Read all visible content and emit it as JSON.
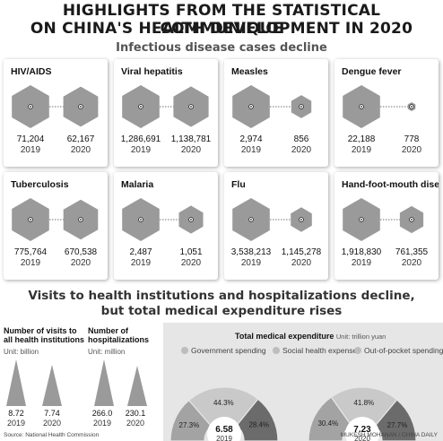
{
  "title_line1": "HIGHLIGHTS FROM THE STATISTICAL COMMUNIQUE",
  "title_line2": "ON CHINA'S HEALTH DEVELOPMENT IN 2020",
  "section1_title": "Infectious disease cases decline",
  "diseases": [
    {
      "name": "HIV/AIDS",
      "v2019": "71,204",
      "v2020": "62,167",
      "y2019": "2019",
      "y2020": "2020",
      "n2019": 71204,
      "n2020": 62167
    },
    {
      "name": "Viral hepatitis",
      "v2019": "1,286,691",
      "v2020": "1,138,781",
      "y2019": "2019",
      "y2020": "2020",
      "n2019": 1286691,
      "n2020": 1138781
    },
    {
      "name": "Measles",
      "v2019": "2,974",
      "v2020": "856",
      "y2019": "2019",
      "y2020": "2020",
      "n2019": 2974,
      "n2020": 856
    },
    {
      "name": "Dengue fever",
      "v2019": "22,188",
      "v2020": "778",
      "y2019": "2019",
      "y2020": "2020",
      "n2019": 22188,
      "n2020": 778
    },
    {
      "name": "Tuberculosis",
      "v2019": "775,764",
      "v2020": "670,538",
      "y2019": "2019",
      "y2020": "2020",
      "n2019": 775764,
      "n2020": 670538
    },
    {
      "name": "Malaria",
      "v2019": "2,487",
      "v2020": "1,051",
      "y2019": "2019",
      "y2020": "2020",
      "n2019": 2487,
      "n2020": 1051
    },
    {
      "name": "Flu",
      "v2019": "3,538,213",
      "v2020": "1,145,278",
      "y2019": "2019",
      "y2020": "2020",
      "n2019": 3538213,
      "n2020": 1145278
    },
    {
      "name": "Hand-foot-mouth disease",
      "v2019": "1,918,830",
      "v2020": "761,355",
      "y2019": "2019",
      "y2020": "2020",
      "n2019": 1918830,
      "n2020": 761355
    }
  ],
  "section2_title_line1": "Visits to health institutions and hospitalizations decline,",
  "section2_title_line2": "but total medical expenditure rises",
  "visits": {
    "title_line1": "Number of visits to",
    "title_line2": "all health institutions",
    "unit": "Unit: billion",
    "values": [
      "8.72",
      "7.74"
    ],
    "numbers": [
      8.72,
      7.74
    ],
    "years": [
      "2019",
      "2020"
    ]
  },
  "hosp": {
    "title_line1": "Number of",
    "title_line2": "hospitalizations",
    "unit": "Unit: million",
    "values": [
      "266.0",
      "230.1"
    ],
    "numbers": [
      266.0,
      230.1
    ],
    "years": [
      "2019",
      "2020"
    ]
  },
  "expenditure": {
    "title": "Total medical expenditure",
    "unit": "Unit: trillion yuan",
    "legend": [
      "Government spending",
      "Social health expenses",
      "Out-of-pocket spending"
    ],
    "colors": [
      "#a3a3a3",
      "#c9c9c9",
      "#6b6b6b"
    ],
    "years": [
      {
        "year": "2019",
        "total": "6.58",
        "pcts": [
          "27.3%",
          "44.3%",
          "28.4%"
        ],
        "shares": [
          27.3,
          44.3,
          28.4
        ]
      },
      {
        "year": "2020",
        "total": "7.23",
        "pcts": [
          "30.4%",
          "41.8%",
          "27.7%"
        ],
        "shares": [
          30.4,
          41.8,
          27.7
        ]
      }
    ]
  },
  "source": "Source: National Health Commission",
  "credit": "MUKESH MOHANAN / CHINA DAILY",
  "hex_color": "#9a9a9a"
}
